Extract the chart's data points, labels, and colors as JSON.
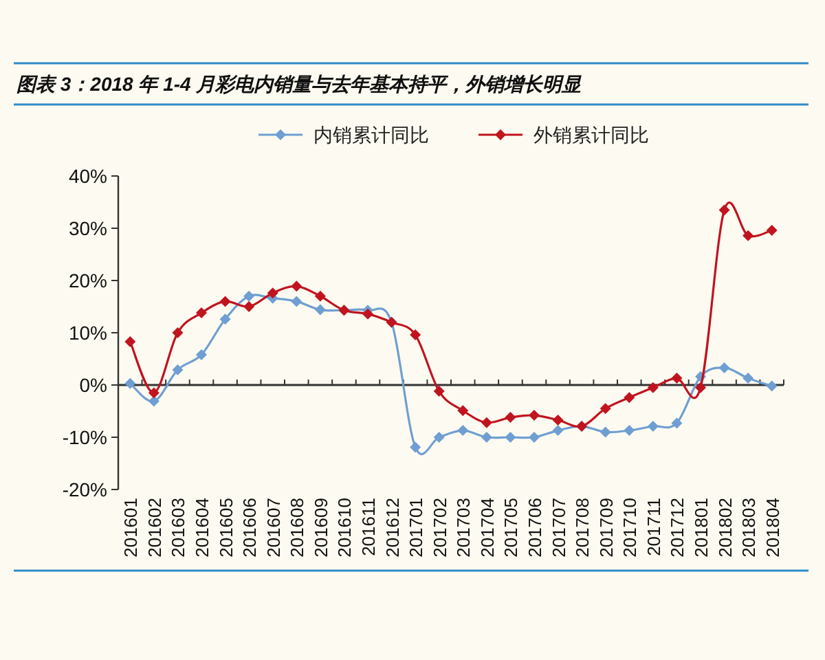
{
  "chart_data": {
    "type": "line",
    "title": "图表 3：2018 年 1-4 月彩电内销量与去年基本持平，外销增长明显",
    "categories": [
      "201601",
      "201602",
      "201603",
      "201604",
      "201605",
      "201606",
      "201607",
      "201608",
      "201609",
      "201610",
      "201611",
      "201612",
      "201701",
      "201702",
      "201703",
      "201704",
      "201705",
      "201706",
      "201707",
      "201708",
      "201709",
      "201710",
      "201711",
      "201712",
      "201801",
      "201802",
      "201803",
      "201804"
    ],
    "series": [
      {
        "name": "内销累计同比",
        "color": "#6f9fd2",
        "values": [
          0.3,
          -3.1,
          2.9,
          5.8,
          12.6,
          17,
          16.6,
          16,
          14.4,
          14.3,
          14.3,
          12,
          -11.9,
          -10,
          -8.7,
          -10,
          -10,
          -10,
          -8.7,
          -7.9,
          -9,
          -8.7,
          -7.9,
          -7.3,
          1.6,
          3.3,
          1.3,
          -0.2
        ]
      },
      {
        "name": "外销累计同比",
        "color": "#c0141f",
        "values": [
          8.3,
          -1.5,
          10,
          13.8,
          16,
          15,
          17.6,
          18.9,
          17,
          14.3,
          13.6,
          12,
          9.6,
          -1.2,
          -4.9,
          -7.2,
          -6.2,
          -5.8,
          -6.7,
          -7.9,
          -4.5,
          -2.4,
          -0.5,
          1.3,
          -0.5,
          33.5,
          28.6,
          29.6
        ]
      }
    ],
    "ylim": [
      -20,
      40
    ],
    "yticks": [
      {
        "value": -20,
        "label": "-20%"
      },
      {
        "value": -10,
        "label": "-10%"
      },
      {
        "value": 0,
        "label": "0%"
      },
      {
        "value": 10,
        "label": "10%"
      },
      {
        "value": 20,
        "label": "20%"
      },
      {
        "value": 30,
        "label": "30%"
      },
      {
        "value": 40,
        "label": "40%"
      }
    ],
    "marker": "diamond",
    "line_style": "solid",
    "legend": "top"
  }
}
